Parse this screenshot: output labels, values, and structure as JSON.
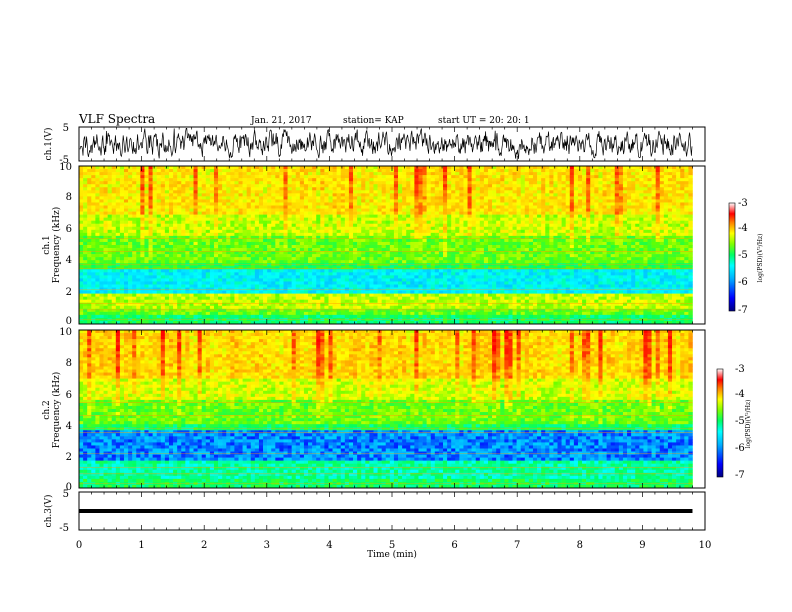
{
  "header": {
    "title": "VLF Spectra",
    "date": "Jan. 21, 2017",
    "station": "station= KAP",
    "start": "start  UT  =   20: 20: 1"
  },
  "colors": {
    "colormap": [
      "#00007f",
      "#0000ff",
      "#00b4ff",
      "#00ffff",
      "#00ff64",
      "#64ff00",
      "#ffff00",
      "#ffb400",
      "#ff4000",
      "#ff0000",
      "#ffffff"
    ],
    "trace": "#000000"
  },
  "chart_data": [
    {
      "type": "line",
      "ylabel": "ch.1(V)",
      "ylim": [
        -5,
        5
      ],
      "yticks": [
        "5",
        "-5"
      ],
      "xlim": [
        0,
        10
      ],
      "series": [
        {
          "description_hidden": "",
          "values": "noisy waveform spanning roughly -4 to 4 V from 0 to 9.8 min"
        }
      ]
    },
    {
      "type": "heatmap",
      "ylabel_top": "ch.1",
      "ylabel": "Frequency  (kHz)",
      "ylim": [
        0,
        10
      ],
      "yticks": [
        "0",
        "2",
        "4",
        "6",
        "8",
        "10"
      ],
      "xlim": [
        0,
        10
      ],
      "data_xmax": 9.8,
      "colorbar": {
        "label": "log(PSD)(V²/Hz)",
        "range": [
          -7,
          -3
        ],
        "ticks": [
          "-3",
          "-4",
          "-5",
          "-6",
          "-7"
        ]
      },
      "bands": [
        {
          "from": 0,
          "to": 0.5,
          "level": 0.45
        },
        {
          "from": 0.5,
          "to": 1.0,
          "level": 0.55
        },
        {
          "from": 1.0,
          "to": 2.0,
          "level": 0.62
        },
        {
          "from": 2.0,
          "to": 3.4,
          "level": 0.32
        },
        {
          "from": 3.4,
          "to": 3.8,
          "level": 0.48
        },
        {
          "from": 3.8,
          "to": 5.6,
          "level": 0.55
        },
        {
          "from": 5.6,
          "to": 7.0,
          "level": 0.63
        },
        {
          "from": 7.0,
          "to": 10.0,
          "level": 0.7
        }
      ]
    },
    {
      "type": "heatmap",
      "ylabel_top": "ch.2",
      "ylabel": "Frequency  (kHz)",
      "ylim": [
        0,
        10
      ],
      "yticks": [
        "0",
        "2",
        "4",
        "6",
        "8",
        "10"
      ],
      "xlim": [
        0,
        10
      ],
      "data_xmax": 9.8,
      "colorbar": {
        "label": "log(PSD)(V²/Hz)",
        "range": [
          -7,
          -3
        ],
        "ticks": [
          "-3",
          "-4",
          "-5",
          "-6",
          "-7"
        ]
      },
      "bands": [
        {
          "from": 0,
          "to": 0.5,
          "level": 0.45
        },
        {
          "from": 0.5,
          "to": 1.8,
          "level": 0.4
        },
        {
          "from": 1.8,
          "to": 3.6,
          "level": 0.2
        },
        {
          "from": 3.6,
          "to": 4.0,
          "level": 0.45
        },
        {
          "from": 4.0,
          "to": 5.6,
          "level": 0.55
        },
        {
          "from": 5.6,
          "to": 7.0,
          "level": 0.64
        },
        {
          "from": 7.0,
          "to": 10.0,
          "level": 0.72
        }
      ]
    },
    {
      "type": "line",
      "ylabel": "ch.3(V)",
      "ylim": [
        -5,
        5
      ],
      "yticks": [
        "5",
        "-5"
      ],
      "xlim": [
        0,
        10
      ],
      "series": [
        {
          "values": [
            {
              "x": 0,
              "y": 0
            },
            {
              "x": 9.8,
              "y": 0
            }
          ]
        }
      ]
    }
  ],
  "xaxis": {
    "label": "Time  (min)",
    "ticks": [
      "0",
      "1",
      "2",
      "3",
      "4",
      "5",
      "6",
      "7",
      "8",
      "9",
      "10"
    ]
  }
}
